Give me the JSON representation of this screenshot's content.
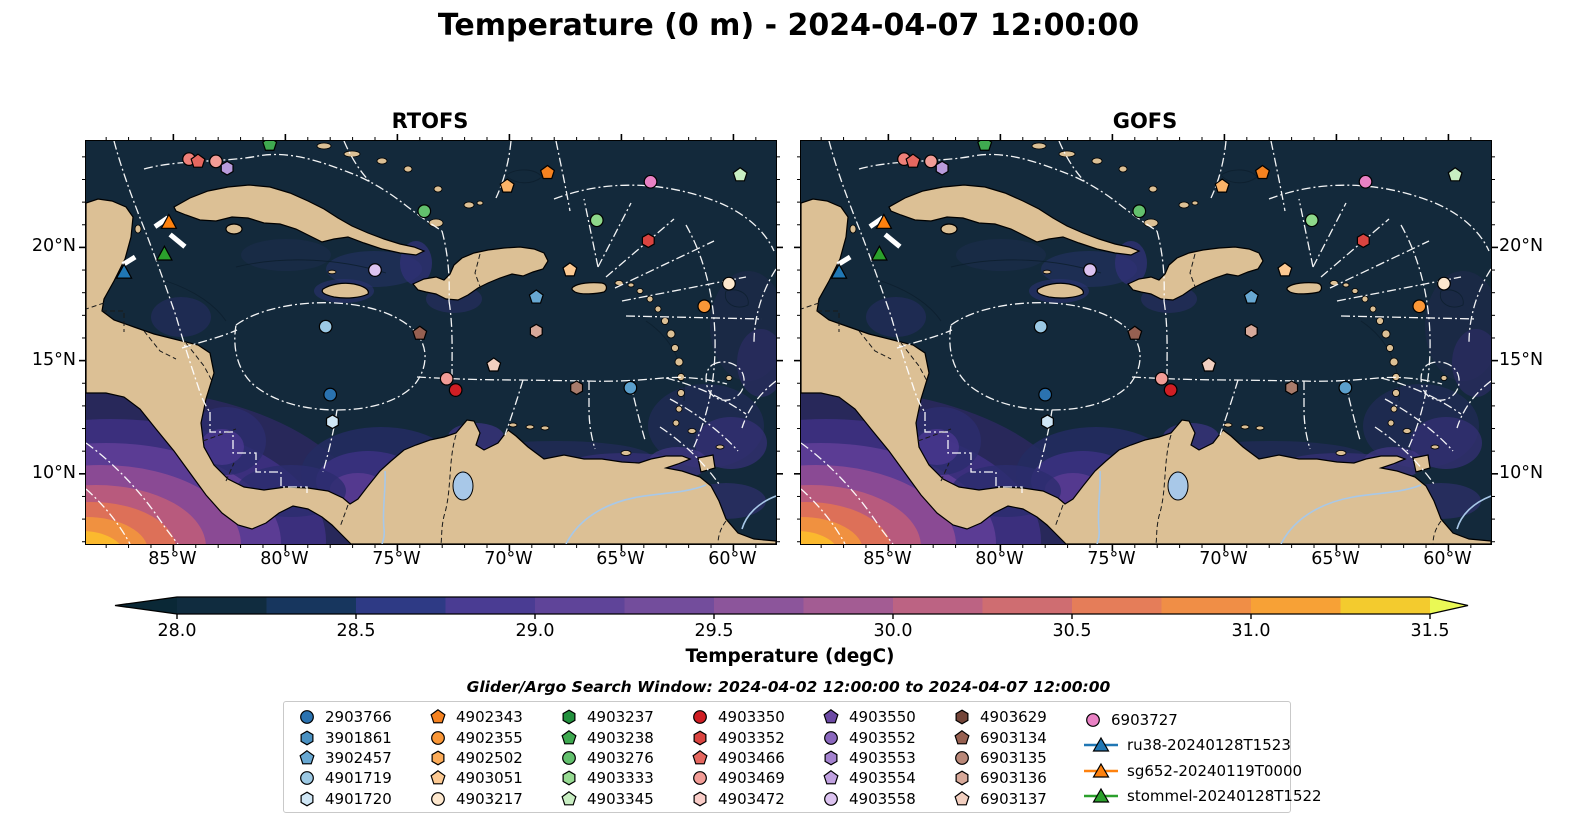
{
  "chart_data": {
    "type": "map",
    "title": "Temperature (0 m) - 2024-04-07 12:00:00",
    "panels": [
      {
        "title": "RTOFS",
        "y_axis_side": "left"
      },
      {
        "title": "GOFS",
        "y_axis_side": "right"
      }
    ],
    "axes": {
      "lon_west_edge": 88.9,
      "lon_east_edge": 58.1,
      "lat_top_edge": 24.7,
      "lat_bottom_edge": 6.9,
      "x_tick_values": [
        85,
        80,
        75,
        70,
        65,
        60
      ],
      "x_tick_labels": [
        "85°W",
        "80°W",
        "75°W",
        "70°W",
        "65°W",
        "60°W"
      ],
      "y_tick_values": [
        20,
        15,
        10
      ],
      "y_tick_labels": [
        "20°N",
        "15°N",
        "10°N"
      ],
      "minor_ticks_every_deg": 1,
      "grid": false
    },
    "colorbar": {
      "label": "Temperature (degC)",
      "tick_labels": [
        "28.0",
        "28.5",
        "29.0",
        "29.5",
        "30.0",
        "30.5",
        "31.0",
        "31.5"
      ],
      "tick_values": [
        28.0,
        28.5,
        29.0,
        29.5,
        30.0,
        30.5,
        31.0,
        31.5
      ],
      "range": [
        28.0,
        31.5
      ],
      "segment_step": 0.25,
      "extend": "both",
      "under_color": "#0a2836",
      "over_color": "#eaf955",
      "segment_colors": [
        "#102c3f",
        "#17365e",
        "#2e3a85",
        "#4a3c93",
        "#5f4499",
        "#734d9c",
        "#8c559b",
        "#a35c93",
        "#bc6383",
        "#cf6d71",
        "#e57d59",
        "#f08e46",
        "#f7a136",
        "#f3cb2e"
      ]
    },
    "search_window": "Glider/Argo Search Window: 2024-04-02 12:00:00 to 2024-04-07 12:00:00",
    "markers": [
      {
        "shape": "circle",
        "color": "#ef8079",
        "lon": 84.3,
        "lat": 23.9
      },
      {
        "shape": "pentagon",
        "color": "#e5675f",
        "lon": 83.9,
        "lat": 23.8
      },
      {
        "shape": "circle",
        "color": "#f29c96",
        "lon": 83.1,
        "lat": 23.8
      },
      {
        "shape": "hexagon",
        "color": "#b99bdc",
        "lon": 82.6,
        "lat": 23.5
      },
      {
        "shape": "pentagon",
        "color": "#3fa950",
        "lon": 80.7,
        "lat": 24.55
      },
      {
        "shape": "circle",
        "color": "#63c06d",
        "lon": 73.8,
        "lat": 21.6
      },
      {
        "shape": "circle",
        "color": "#dcc3f0",
        "lon": 76.0,
        "lat": 19.0
      },
      {
        "shape": "circle",
        "color": "#9cc9e4",
        "lon": 78.2,
        "lat": 16.5
      },
      {
        "shape": "circle",
        "color": "#2a72b0",
        "lon": 78.0,
        "lat": 13.5
      },
      {
        "shape": "hexagon",
        "color": "#cfe6f5",
        "lon": 77.9,
        "lat": 12.3
      },
      {
        "shape": "pentagon",
        "color": "#966051",
        "lon": 74.0,
        "lat": 16.2
      },
      {
        "shape": "pentagon",
        "color": "#f2cfc0",
        "lon": 70.7,
        "lat": 14.8
      },
      {
        "shape": "circle",
        "color": "#f29c96",
        "lon": 72.8,
        "lat": 14.2
      },
      {
        "shape": "circle",
        "color": "#d01e24",
        "lon": 72.4,
        "lat": 13.7
      },
      {
        "shape": "pentagon",
        "color": "#f58220",
        "lon": 68.3,
        "lat": 23.3
      },
      {
        "shape": "pentagon",
        "color": "#fbb368",
        "lon": 70.1,
        "lat": 22.7
      },
      {
        "shape": "circle",
        "color": "#e981c4",
        "lon": 63.7,
        "lat": 22.9
      },
      {
        "shape": "pentagon",
        "color": "#c8eec2",
        "lon": 59.7,
        "lat": 23.2
      },
      {
        "shape": "circle",
        "color": "#8ed88a",
        "lon": 66.1,
        "lat": 21.2
      },
      {
        "shape": "hexagon",
        "color": "#da4440",
        "lon": 63.8,
        "lat": 20.3
      },
      {
        "shape": "pentagon",
        "color": "#fcc992",
        "lon": 67.3,
        "lat": 19.0
      },
      {
        "shape": "circle",
        "color": "#fde7cd",
        "lon": 60.2,
        "lat": 18.4
      },
      {
        "shape": "circle",
        "color": "#fa9737",
        "lon": 61.3,
        "lat": 17.4
      },
      {
        "shape": "pentagon",
        "color": "#68a8d2",
        "lon": 68.8,
        "lat": 17.8
      },
      {
        "shape": "hexagon",
        "color": "#d7a99a",
        "lon": 68.8,
        "lat": 16.3
      },
      {
        "shape": "hexagon",
        "color": "#a87b6b",
        "lon": 67.0,
        "lat": 13.8
      },
      {
        "shape": "circle",
        "color": "#5b9fcc",
        "lon": 64.6,
        "lat": 13.8
      },
      {
        "shape": "triangle",
        "color": "#fe810e",
        "lon": 85.2,
        "lat": 21.1
      },
      {
        "shape": "triangle",
        "color": "#2ba02c",
        "lon": 85.4,
        "lat": 19.7
      },
      {
        "shape": "triangle",
        "color": "#2077b4",
        "lon": 87.2,
        "lat": 18.9
      }
    ],
    "glider_track_segments": [
      {
        "lon1": 85.73,
        "lat1": 20.98,
        "lon2": 85.33,
        "lat2": 21.25
      },
      {
        "lon1": 85.06,
        "lat1": 20.5,
        "lon2": 84.57,
        "lat2": 20.1
      },
      {
        "lon1": 87.16,
        "lat1": 19.3,
        "lon2": 86.8,
        "lat2": 19.52
      }
    ]
  },
  "legend": {
    "columns": [
      [
        {
          "id": "2903766",
          "shape": "circle",
          "color": "#2a72b0"
        },
        {
          "id": "3901861",
          "shape": "hexagon",
          "color": "#4a91c2"
        },
        {
          "id": "3902457",
          "shape": "pentagon",
          "color": "#68a8d2"
        },
        {
          "id": "4901719",
          "shape": "circle",
          "color": "#9cc9e4"
        },
        {
          "id": "4901720",
          "shape": "hexagon",
          "color": "#cfe6f5"
        }
      ],
      [
        {
          "id": "4902343",
          "shape": "pentagon",
          "color": "#f58220"
        },
        {
          "id": "4902355",
          "shape": "circle",
          "color": "#fa9737"
        },
        {
          "id": "4902502",
          "shape": "hexagon",
          "color": "#fcac59"
        },
        {
          "id": "4903051",
          "shape": "pentagon",
          "color": "#fcc992"
        },
        {
          "id": "4903217",
          "shape": "circle",
          "color": "#fde7cd"
        }
      ],
      [
        {
          "id": "4903237",
          "shape": "hexagon",
          "color": "#23913e"
        },
        {
          "id": "4903238",
          "shape": "pentagon",
          "color": "#3fa950"
        },
        {
          "id": "4903276",
          "shape": "circle",
          "color": "#63c06d"
        },
        {
          "id": "4903333",
          "shape": "hexagon",
          "color": "#97da92"
        },
        {
          "id": "4903345",
          "shape": "pentagon",
          "color": "#c8eec2"
        }
      ],
      [
        {
          "id": "4903350",
          "shape": "circle",
          "color": "#d01e24"
        },
        {
          "id": "4903352",
          "shape": "hexagon",
          "color": "#da4440"
        },
        {
          "id": "4903466",
          "shape": "pentagon",
          "color": "#e5675f"
        },
        {
          "id": "4903469",
          "shape": "circle",
          "color": "#f29c96"
        },
        {
          "id": "4903472",
          "shape": "hexagon",
          "color": "#f9cdc8"
        }
      ],
      [
        {
          "id": "4903550",
          "shape": "pentagon",
          "color": "#6c4aa4"
        },
        {
          "id": "4903552",
          "shape": "circle",
          "color": "#8b68be"
        },
        {
          "id": "4903553",
          "shape": "hexagon",
          "color": "#a483cf"
        },
        {
          "id": "4903554",
          "shape": "pentagon",
          "color": "#c0a1e0"
        },
        {
          "id": "4903558",
          "shape": "circle",
          "color": "#dcc3f0"
        }
      ],
      [
        {
          "id": "4903629",
          "shape": "hexagon",
          "color": "#734539"
        },
        {
          "id": "6903134",
          "shape": "pentagon",
          "color": "#966051"
        },
        {
          "id": "6903135",
          "shape": "circle",
          "color": "#b98879"
        },
        {
          "id": "6903136",
          "shape": "hexagon",
          "color": "#d7a99a"
        },
        {
          "id": "6903137",
          "shape": "pentagon",
          "color": "#f2cfc0"
        }
      ],
      [
        {
          "id": "6903727",
          "shape": "circle",
          "color": "#e981c4"
        },
        {
          "id": "ru38-20240128T1523",
          "shape": "glider",
          "color": "#2077b4"
        },
        {
          "id": "sg652-20240119T0000",
          "shape": "glider",
          "color": "#fe810e"
        },
        {
          "id": "stommel-20240128T1522",
          "shape": "glider",
          "color": "#2ba02c"
        }
      ]
    ]
  },
  "map_colors": {
    "ocean": "#13293b",
    "land": "#dcc095",
    "lake": "#a8c8e8",
    "eez_line": "#ffffff",
    "border_line": "#1a1a1a"
  }
}
